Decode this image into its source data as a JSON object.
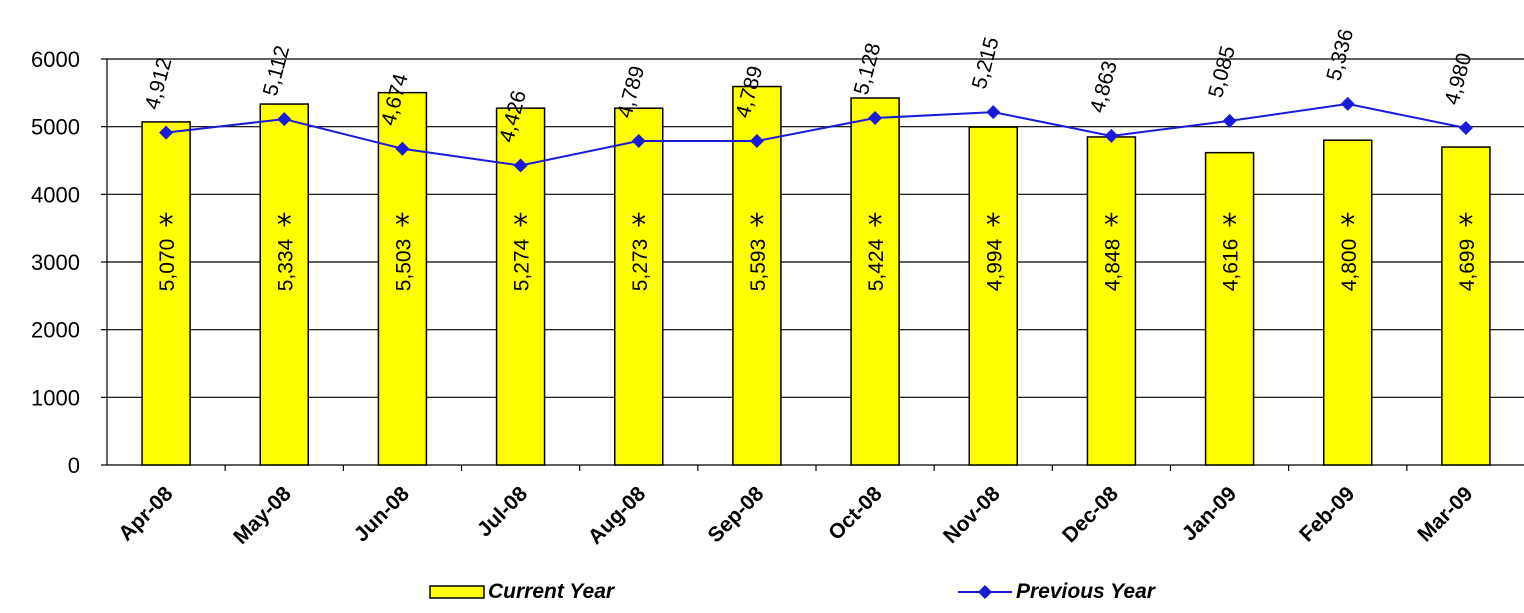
{
  "chart_data": {
    "type": "bar",
    "categories": [
      "Apr-08",
      "May-08",
      "Jun-08",
      "Jul-08",
      "Aug-08",
      "Sep-08",
      "Oct-08",
      "Nov-08",
      "Dec-08",
      "Jan-09",
      "Feb-09",
      "Mar-09"
    ],
    "series": [
      {
        "name": "Current Year",
        "type": "bar",
        "color": "#ffff00",
        "values": [
          5070,
          5334,
          5503,
          5274,
          5273,
          5593,
          5424,
          4994,
          4848,
          4616,
          4800,
          4699
        ],
        "labels": [
          "5,070",
          "5,334",
          "5,503",
          "5,274",
          "5,273",
          "5,593",
          "5,424",
          "4,994",
          "4,848",
          "4,616",
          "4,800",
          "4,699"
        ]
      },
      {
        "name": "Previous Year",
        "type": "line",
        "color": "#1a1adb",
        "values": [
          4912,
          5112,
          4674,
          4426,
          4789,
          4789,
          5128,
          5215,
          4863,
          5085,
          5336,
          4980
        ],
        "labels": [
          "4,912",
          "5,112",
          "4,674",
          "4,426",
          "4,789",
          "4,789",
          "5,128",
          "5,215",
          "4,863",
          "5,085",
          "5,336",
          "4,980"
        ]
      }
    ],
    "annotations": {
      "star_marker": "*"
    },
    "ylim": [
      0,
      6000
    ],
    "yticks": [
      "0",
      "1000",
      "2000",
      "3000",
      "4000",
      "5000",
      "6000"
    ],
    "grid": true,
    "legend_position": "bottom",
    "title": "",
    "xlabel": "",
    "ylabel": ""
  }
}
